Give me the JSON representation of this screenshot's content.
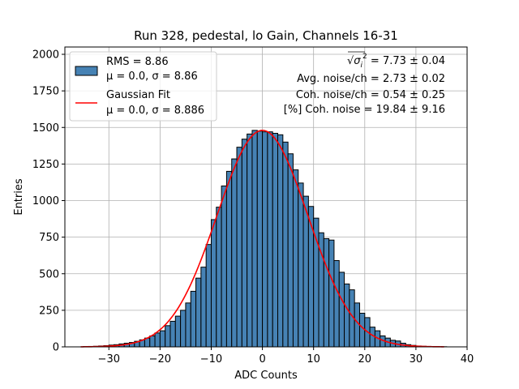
{
  "chart_data": {
    "type": "bar",
    "title": "Run 328, pedestal, lo Gain, Channels 16-31",
    "xlabel": "ADC Counts",
    "ylabel": "Entries",
    "xlim": [
      -38.6,
      40
    ],
    "ylim": [
      0,
      2050
    ],
    "x_ticks": [
      -30,
      -20,
      -10,
      0,
      10,
      20,
      30,
      40
    ],
    "y_ticks": [
      0,
      250,
      500,
      750,
      1000,
      1250,
      1500,
      1750,
      2000
    ],
    "grid": true,
    "colors": {
      "bar_fill": "#4682b4",
      "bar_edge": "#000000",
      "fit_line": "#ff0000",
      "grid": "#b0b0b0"
    },
    "histogram": {
      "name": "RMS = 8.86",
      "stats": "μ = 0.0, σ = 8.86",
      "bin_width": 1,
      "bins": [
        {
          "x": -36,
          "y": 0
        },
        {
          "x": -35,
          "y": 2
        },
        {
          "x": -34,
          "y": 3
        },
        {
          "x": -33,
          "y": 4
        },
        {
          "x": -32,
          "y": 6
        },
        {
          "x": -31,
          "y": 8
        },
        {
          "x": -30,
          "y": 12
        },
        {
          "x": -29,
          "y": 15
        },
        {
          "x": -28,
          "y": 20
        },
        {
          "x": -27,
          "y": 25
        },
        {
          "x": -26,
          "y": 30
        },
        {
          "x": -25,
          "y": 38
        },
        {
          "x": -24,
          "y": 48
        },
        {
          "x": -23,
          "y": 60
        },
        {
          "x": -22,
          "y": 75
        },
        {
          "x": -21,
          "y": 95
        },
        {
          "x": -20,
          "y": 110
        },
        {
          "x": -19,
          "y": 145
        },
        {
          "x": -18,
          "y": 175
        },
        {
          "x": -17,
          "y": 210
        },
        {
          "x": -16,
          "y": 250
        },
        {
          "x": -15,
          "y": 300
        },
        {
          "x": -14,
          "y": 380
        },
        {
          "x": -13,
          "y": 470
        },
        {
          "x": -12,
          "y": 545
        },
        {
          "x": -11,
          "y": 700
        },
        {
          "x": -10,
          "y": 870
        },
        {
          "x": -9,
          "y": 955
        },
        {
          "x": -8,
          "y": 1100
        },
        {
          "x": -7,
          "y": 1200
        },
        {
          "x": -6,
          "y": 1285
        },
        {
          "x": -5,
          "y": 1365
        },
        {
          "x": -4,
          "y": 1420
        },
        {
          "x": -3,
          "y": 1455
        },
        {
          "x": -2,
          "y": 1480
        },
        {
          "x": -1,
          "y": 1475
        },
        {
          "x": 0,
          "y": 1470
        },
        {
          "x": 1,
          "y": 1470
        },
        {
          "x": 2,
          "y": 1460
        },
        {
          "x": 3,
          "y": 1450
        },
        {
          "x": 4,
          "y": 1400
        },
        {
          "x": 5,
          "y": 1320
        },
        {
          "x": 6,
          "y": 1210
        },
        {
          "x": 7,
          "y": 1120
        },
        {
          "x": 8,
          "y": 1030
        },
        {
          "x": 9,
          "y": 960
        },
        {
          "x": 10,
          "y": 880
        },
        {
          "x": 11,
          "y": 780
        },
        {
          "x": 12,
          "y": 740
        },
        {
          "x": 13,
          "y": 730
        },
        {
          "x": 14,
          "y": 590
        },
        {
          "x": 15,
          "y": 510
        },
        {
          "x": 16,
          "y": 430
        },
        {
          "x": 17,
          "y": 390
        },
        {
          "x": 18,
          "y": 300
        },
        {
          "x": 19,
          "y": 230
        },
        {
          "x": 20,
          "y": 200
        },
        {
          "x": 21,
          "y": 135
        },
        {
          "x": 22,
          "y": 110
        },
        {
          "x": 23,
          "y": 75
        },
        {
          "x": 24,
          "y": 60
        },
        {
          "x": 25,
          "y": 45
        },
        {
          "x": 26,
          "y": 40
        },
        {
          "x": 27,
          "y": 25
        },
        {
          "x": 28,
          "y": 15
        },
        {
          "x": 29,
          "y": 10
        },
        {
          "x": 30,
          "y": 6
        },
        {
          "x": 31,
          "y": 4
        },
        {
          "x": 32,
          "y": 3
        },
        {
          "x": 33,
          "y": 2
        },
        {
          "x": 34,
          "y": 1
        },
        {
          "x": 35,
          "y": 1
        }
      ]
    },
    "fit": {
      "name": "Gaussian Fit",
      "stats": "μ = 0.0, σ = 8.886",
      "mu": 0.0,
      "sigma": 8.886,
      "amplitude": 1480,
      "x_range": [
        -35.5,
        35.5
      ]
    },
    "legend_location": "upper-left",
    "annotations": {
      "sqrt_symbol": "√",
      "sigma_symbol": "σ",
      "sub_i": "i",
      "sup_2": "2",
      "line1_value": " = 7.73 ± 0.04",
      "line2": "Avg. noise/ch = 2.73 ± 0.02",
      "line3": "Coh. noise/ch = 0.54 ± 0.25",
      "line4": "[%] Coh. noise = 19.84 ± 9.16"
    }
  }
}
